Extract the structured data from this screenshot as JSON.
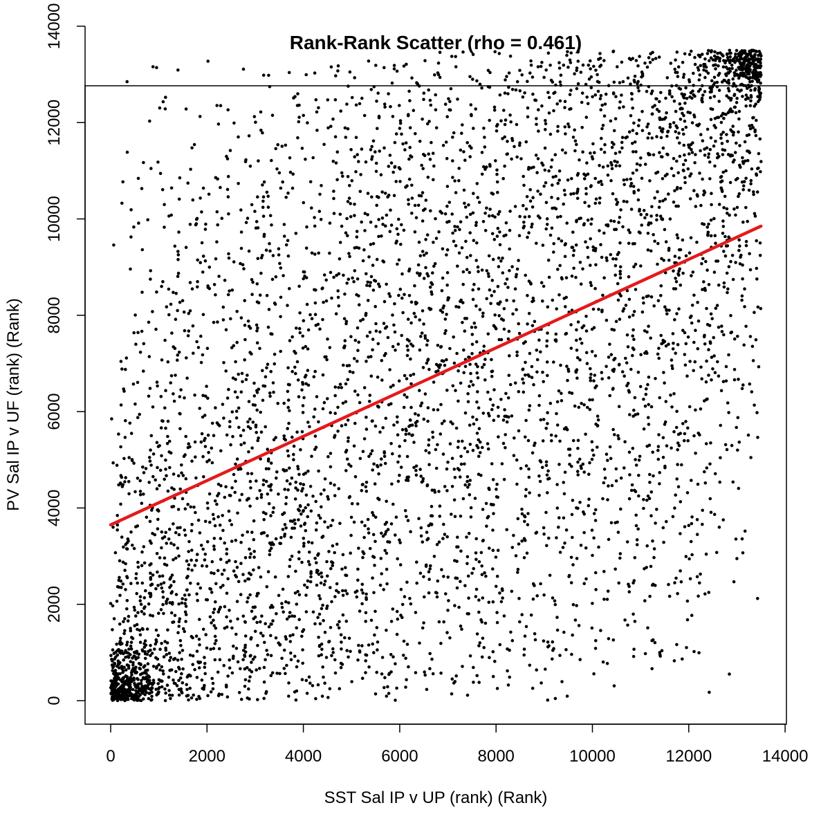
{
  "chart_data": {
    "type": "scatter",
    "title": "Rank-Rank Scatter (rho = 0.461)",
    "xlabel": "SST Sal IP v UP (rank) (Rank)",
    "ylabel": "PV Sal IP v UF (rank) (Rank)",
    "xlim": [
      -550,
      14000
    ],
    "ylim": [
      -550,
      14000
    ],
    "x_ticks": [
      0,
      2000,
      4000,
      6000,
      8000,
      10000,
      12000,
      14000
    ],
    "y_ticks": [
      0,
      2000,
      4000,
      6000,
      8000,
      10000,
      12000,
      14000
    ],
    "x_tick_labels": [
      "0",
      "2000",
      "4000",
      "6000",
      "8000",
      "10000",
      "12000",
      "14000"
    ],
    "y_tick_labels": [
      "0",
      "2000",
      "4000",
      "6000",
      "8000",
      "10000",
      "12000",
      "14000"
    ],
    "rho": 0.461,
    "n_points": 13500,
    "fit_line": {
      "x": [
        0,
        13500
      ],
      "y": [
        3650,
        9850
      ],
      "color": "#e41a1c"
    },
    "point_color": "#000000",
    "grid": false,
    "legend": "none"
  }
}
